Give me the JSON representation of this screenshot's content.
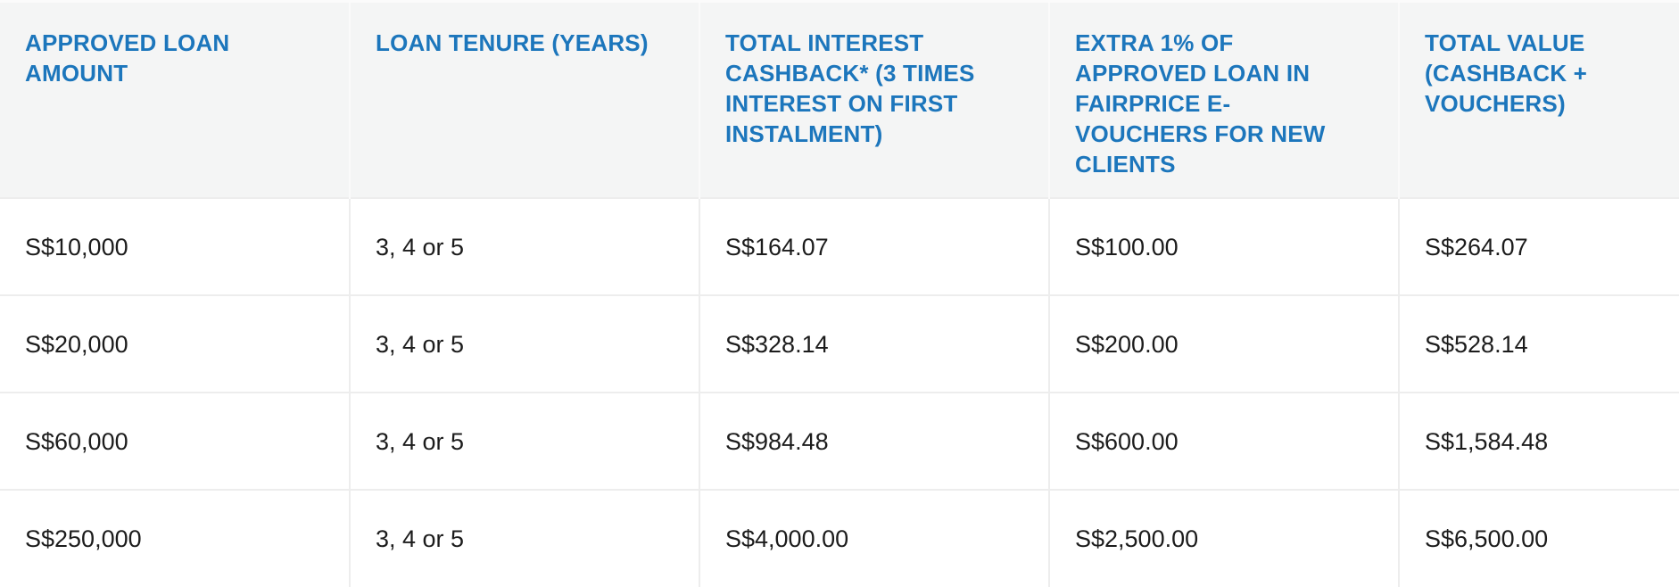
{
  "colors": {
    "header_background": "#f4f5f5",
    "header_text_blue": "#1c76bc",
    "body_text": "#1c1c1c",
    "divider": "#ededed",
    "row_background": "#ffffff"
  },
  "table": {
    "columns": [
      "APPROVED LOAN AMOUNT",
      "LOAN TENURE (YEARS)",
      "TOTAL INTEREST CASHBACK* (3 TIMES INTEREST ON FIRST INSTALMENT)",
      "EXTRA 1% OF APPROVED LOAN IN FAIRPRICE E-VOUCHERS FOR NEW CLIENTS",
      "TOTAL VALUE (CASHBACK + VOUCHERS)"
    ],
    "rows": [
      [
        "S$10,000",
        "3, 4 or 5",
        "S$164.07",
        "S$100.00",
        "S$264.07"
      ],
      [
        "S$20,000",
        "3, 4 or 5",
        "S$328.14",
        "S$200.00",
        "S$528.14"
      ],
      [
        "S$60,000",
        "3, 4 or 5",
        "S$984.48",
        "S$600.00",
        "S$1,584.48"
      ],
      [
        "S$250,000",
        "3, 4 or 5",
        "S$4,000.00",
        "S$2,500.00",
        "S$6,500.00"
      ]
    ]
  }
}
